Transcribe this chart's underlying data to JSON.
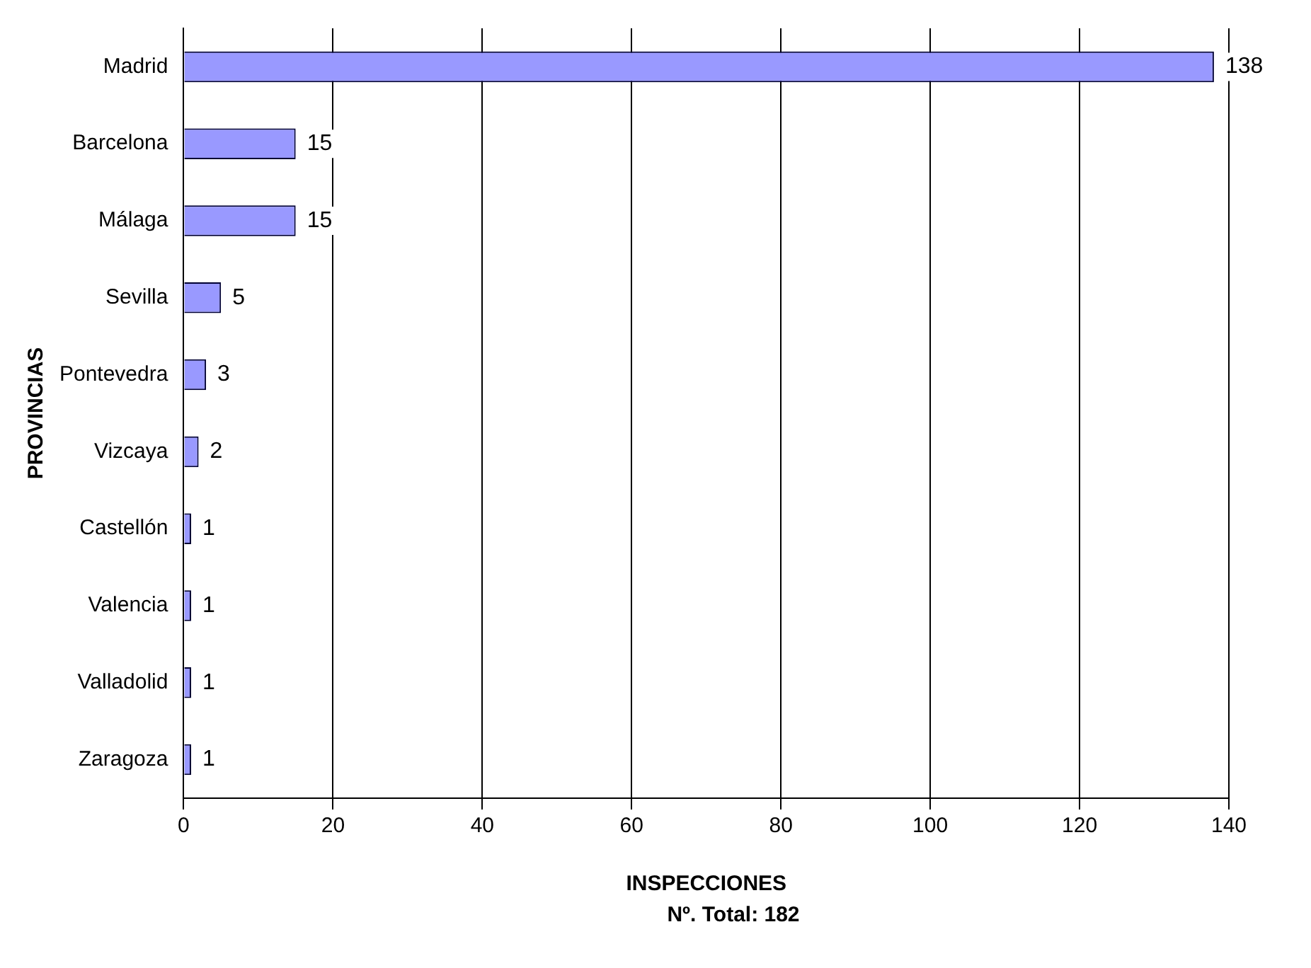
{
  "chart_data": {
    "type": "bar",
    "orientation": "horizontal",
    "categories": [
      "Madrid",
      "Barcelona",
      "Málaga",
      "Sevilla",
      "Pontevedra",
      "Vizcaya",
      "Castellón",
      "Valencia",
      "Valladolid",
      "Zaragoza"
    ],
    "values": [
      138,
      15,
      15,
      5,
      3,
      2,
      1,
      1,
      1,
      1
    ],
    "color": "#9999ff",
    "xlim": [
      0,
      140
    ],
    "xticks": [
      0,
      20,
      40,
      60,
      80,
      100,
      120,
      140
    ],
    "xlabel": "INSPECCIONES",
    "ylabel": "PROVINCIAS",
    "annotations": [
      "Nº. Total: 182"
    ],
    "grid": "x",
    "data_labels": true,
    "legend": false
  }
}
